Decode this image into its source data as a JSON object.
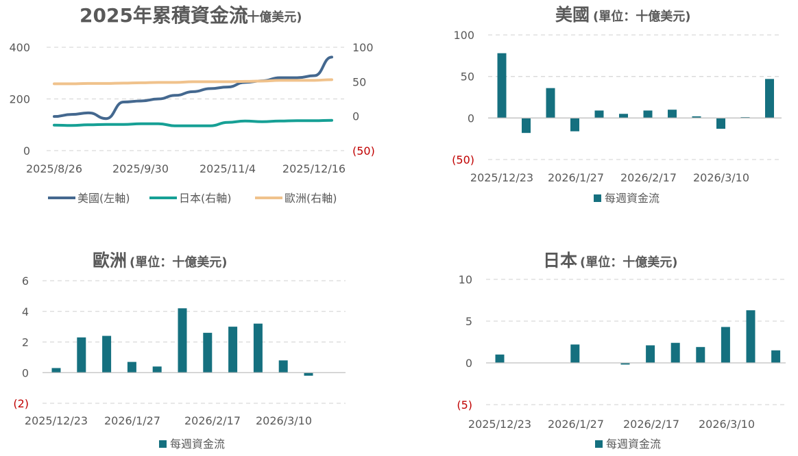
{
  "chart_data": [
    {
      "type": "line",
      "title": "2025年累積資金流",
      "subtitle": "(十億美元)",
      "x_ticks": [
        "2025/8/26",
        "2025/9/30",
        "2025/11/4",
        "2025/12/16"
      ],
      "y_left_ticks": [
        "0",
        "200",
        "400"
      ],
      "y_right_ticks": [
        "(50)",
        "0",
        "50",
        "100"
      ],
      "ylim_left": [
        0,
        400
      ],
      "ylim_right": [
        -50,
        100
      ],
      "grid": true,
      "legend_position": "bottom",
      "x": [
        "2025/8/26",
        "2025/9/2",
        "2025/9/9",
        "2025/9/16",
        "2025/9/23",
        "2025/9/30",
        "2025/10/7",
        "2025/10/14",
        "2025/10/21",
        "2025/10/28",
        "2025/11/4",
        "2025/11/11",
        "2025/11/18",
        "2025/11/25",
        "2025/12/2",
        "2025/12/9",
        "2025/12/16"
      ],
      "series": [
        {
          "name": "美國(左軸)",
          "axis": "left",
          "color": "#44688f",
          "values": [
            132,
            140,
            146,
            124,
            188,
            192,
            200,
            214,
            228,
            240,
            246,
            264,
            270,
            282,
            282,
            290,
            362
          ]
        },
        {
          "name": "日本(右軸)",
          "axis": "right",
          "color": "#16a095",
          "values": [
            -13,
            -13.5,
            -12.5,
            -12,
            -12,
            -11,
            -11,
            -14,
            -14,
            -14,
            -9,
            -7,
            -8,
            -7,
            -6.5,
            -6.5,
            -6
          ]
        },
        {
          "name": "歐洲(右軸)",
          "axis": "right",
          "color": "#f0c28c",
          "values": [
            47,
            47,
            47.5,
            47.5,
            48,
            48.5,
            49,
            49,
            50,
            50,
            50,
            50.5,
            51,
            52,
            52,
            52,
            53
          ]
        }
      ]
    },
    {
      "type": "bar",
      "title": "美國",
      "subtitle": "(單位：十億美元)",
      "x_ticks": [
        "2025/12/23",
        "2026/1/27",
        "2026/2/17",
        "2026/3/10"
      ],
      "y_ticks": [
        "(50)",
        "0",
        "50",
        "100"
      ],
      "ylim": [
        -50,
        100
      ],
      "grid": true,
      "legend_position": "bottom",
      "series": [
        {
          "name": "每週資金流",
          "color": "#15707f",
          "values": [
            78,
            -18,
            36,
            -16,
            9,
            5,
            9,
            10,
            2,
            -13,
            1,
            47
          ]
        }
      ]
    },
    {
      "type": "bar",
      "title": "歐洲",
      "subtitle": "(單位：十億美元)",
      "x_ticks": [
        "2025/12/23",
        "2026/1/27",
        "2026/2/17",
        "2026/3/10"
      ],
      "y_ticks": [
        "(2)",
        "0",
        "2",
        "4",
        "6"
      ],
      "ylim": [
        -2,
        6
      ],
      "grid": true,
      "legend_position": "bottom",
      "series": [
        {
          "name": "每週資金流",
          "color": "#15707f",
          "values": [
            0.3,
            2.3,
            2.4,
            0.7,
            0.4,
            4.2,
            2.6,
            3.0,
            3.2,
            0.8,
            -0.2
          ]
        }
      ]
    },
    {
      "type": "bar",
      "title": "日本",
      "subtitle": "(單位：十億美元)",
      "x_ticks": [
        "2025/12/23",
        "2026/1/27",
        "2026/2/17",
        "2026/3/10"
      ],
      "y_ticks": [
        "(5)",
        "0",
        "5",
        "10"
      ],
      "ylim": [
        -5,
        10
      ],
      "grid": true,
      "legend_position": "bottom",
      "series": [
        {
          "name": "每週資金流",
          "color": "#15707f",
          "values": [
            1.0,
            0,
            0,
            2.2,
            0,
            -0.2,
            2.1,
            2.4,
            1.9,
            4.3,
            6.3,
            1.5
          ]
        }
      ]
    }
  ]
}
